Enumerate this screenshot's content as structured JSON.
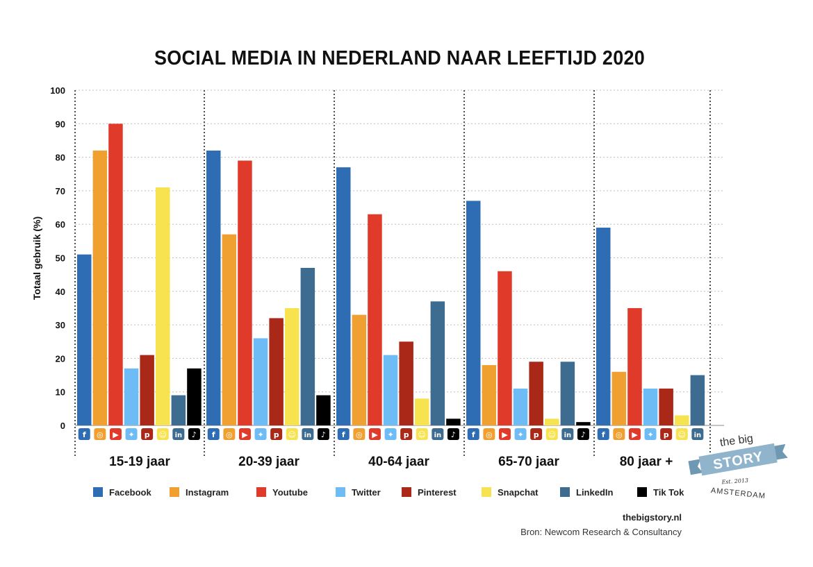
{
  "chart_data": {
    "type": "bar",
    "title": "SOCIAL MEDIA IN NEDERLAND NAAR LEEFTIJD 2020",
    "ylabel": "Totaal gebruik (%)",
    "xlabel": "",
    "ylim": [
      0,
      100
    ],
    "yticks": [
      0,
      10,
      20,
      30,
      40,
      50,
      60,
      70,
      80,
      90,
      100
    ],
    "grid": true,
    "legend_position": "bottom",
    "categories": [
      "15-19 jaar",
      "20-39 jaar",
      "40-64 jaar",
      "65-70 jaar",
      "80 jaar +"
    ],
    "series": [
      {
        "name": "Facebook",
        "color": "#2e6db4",
        "icon": "facebook-icon",
        "values": [
          51,
          82,
          77,
          67,
          59
        ]
      },
      {
        "name": "Instagram",
        "color": "#f0a030",
        "icon": "instagram-icon",
        "values": [
          82,
          57,
          33,
          18,
          16
        ]
      },
      {
        "name": "Youtube",
        "color": "#e03a2a",
        "icon": "youtube-icon",
        "values": [
          90,
          79,
          63,
          46,
          35
        ]
      },
      {
        "name": "Twitter",
        "color": "#6dbcf5",
        "icon": "twitter-icon",
        "values": [
          17,
          26,
          21,
          11,
          11
        ]
      },
      {
        "name": "Pinterest",
        "color": "#a92818",
        "icon": "pinterest-icon",
        "values": [
          21,
          32,
          25,
          19,
          11
        ]
      },
      {
        "name": "Snapchat",
        "color": "#f7e250",
        "icon": "snapchat-icon",
        "values": [
          71,
          35,
          8,
          2,
          3
        ]
      },
      {
        "name": "LinkedIn",
        "color": "#3d6c90",
        "icon": "linkedin-icon",
        "values": [
          9,
          47,
          37,
          19,
          15
        ]
      },
      {
        "name": "TikTok",
        "color": "#000000",
        "icon": "tiktok-icon",
        "values": [
          17,
          9,
          2,
          1,
          null
        ]
      }
    ],
    "legend_labels": [
      "Facebook",
      "Instagram",
      "Youtube",
      "Twitter",
      "Pinterest",
      "Snapchat",
      "LinkedIn",
      "Tik Tok"
    ]
  },
  "footer": {
    "site": "thebigstory.nl",
    "source": "Bron: Newcom Research & Consultancy"
  },
  "logo": {
    "top": "the big",
    "story": "STORY",
    "est": "Est. 2013",
    "city": "AMSTERDAM",
    "color": "#8fb4cc"
  }
}
